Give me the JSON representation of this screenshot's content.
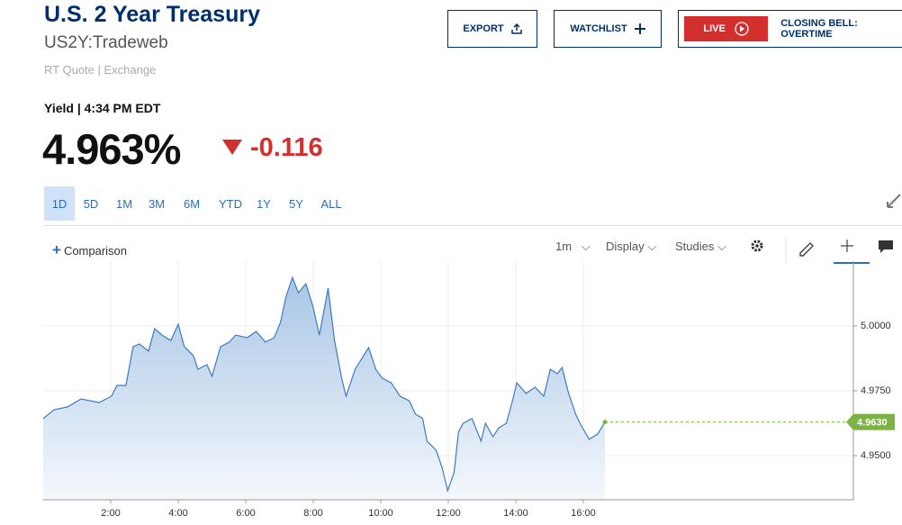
{
  "header": {
    "title": "U.S. 2 Year Treasury",
    "symbol": "US2Y:Tradeweb",
    "quote_source": "RT Quote | Exchange",
    "yield_time": "Yield | 4:34 PM EDT",
    "price": "4.963%",
    "change": "-0.116"
  },
  "buttons": {
    "export": "EXPORT",
    "watchlist": "WATCHLIST",
    "live": "LIVE",
    "closing_bell": "CLOSING BELL: OVERTIME"
  },
  "ranges": [
    "1D",
    "5D",
    "1M",
    "3M",
    "6M",
    "YTD",
    "1Y",
    "5Y",
    "ALL"
  ],
  "toolbar": {
    "comparison": "Comparison",
    "interval": "1m",
    "display": "Display",
    "studies": "Studies"
  },
  "chart_data": {
    "type": "area",
    "color": "#3b7cc0",
    "grid": true,
    "x": [
      0,
      0.32,
      0.72,
      1.12,
      1.65,
      2.02,
      2.18,
      2.45,
      2.66,
      2.85,
      3.12,
      3.3,
      3.52,
      3.78,
      4.0,
      4.18,
      4.45,
      4.58,
      4.85,
      5.0,
      5.25,
      5.51,
      5.7,
      6.04,
      6.31,
      6.58,
      6.84,
      7.03,
      7.19,
      7.38,
      7.56,
      7.78,
      7.99,
      8.18,
      8.44,
      8.63,
      8.84,
      8.97,
      9.24,
      9.64,
      9.85,
      10.04,
      10.31,
      10.57,
      10.84,
      11.03,
      11.24,
      11.37,
      11.64,
      11.82,
      11.98,
      12.17,
      12.3,
      12.44,
      12.7,
      12.97,
      13.1,
      13.32,
      13.5,
      13.72,
      13.9,
      14.03,
      14.3,
      14.57,
      14.83,
      15.02,
      15.23,
      15.37,
      15.55,
      15.77,
      15.9,
      16.17,
      16.43,
      16.64
    ],
    "values": [
      4.9643,
      4.9677,
      4.9688,
      4.9719,
      4.9705,
      4.9729,
      4.9771,
      4.9771,
      4.992,
      4.9931,
      4.9903,
      4.999,
      4.9965,
      4.9944,
      5.0007,
      4.992,
      4.9885,
      4.9833,
      4.9851,
      4.9806,
      4.992,
      4.9938,
      4.9965,
      4.9955,
      4.9979,
      4.9938,
      4.9955,
      5.0014,
      5.0111,
      5.0187,
      5.0128,
      5.0163,
      5.0076,
      4.9965,
      5.0146,
      4.9944,
      4.9799,
      4.9729,
      4.9833,
      4.9917,
      4.9833,
      4.9799,
      4.9781,
      4.9729,
      4.9712,
      4.966,
      4.9643,
      4.9556,
      4.9521,
      4.9452,
      4.9365,
      4.9434,
      4.9591,
      4.9625,
      4.9643,
      4.9556,
      4.9625,
      4.9573,
      4.9608,
      4.9625,
      4.9712,
      4.9781,
      4.974,
      4.9764,
      4.9729,
      4.9833,
      4.9816,
      4.984,
      4.9747,
      4.966,
      4.9625,
      4.9563,
      4.9584,
      4.963
    ],
    "xlim": [
      0,
      24
    ],
    "xticks": [
      {
        "value": 2,
        "label": "2:00"
      },
      {
        "value": 4,
        "label": "4:00"
      },
      {
        "value": 6,
        "label": "6:00"
      },
      {
        "value": 8,
        "label": "8:00"
      },
      {
        "value": 10,
        "label": "10:00"
      },
      {
        "value": 12,
        "label": "12:00"
      },
      {
        "value": 14,
        "label": "14:00"
      },
      {
        "value": 16,
        "label": "16:00"
      }
    ],
    "ylim": [
      4.933,
      5.025
    ],
    "yticks": [
      {
        "value": 4.95,
        "label": "4.9500"
      },
      {
        "value": 4.975,
        "label": "4.9750"
      },
      {
        "value": 5.0,
        "label": "5.0000"
      }
    ],
    "current": {
      "value": 4.963,
      "label": "4.9630",
      "color": "#7cb342"
    }
  }
}
